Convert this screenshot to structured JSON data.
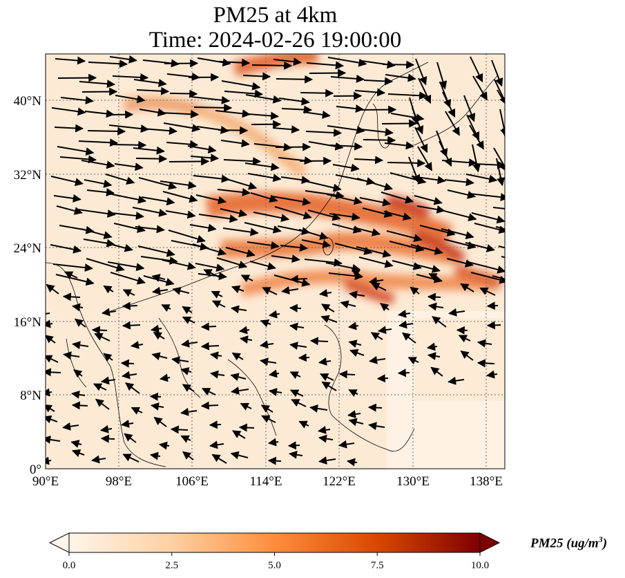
{
  "title_line1": "PM25 at 4km",
  "title_line2": "Time: 2024-02-26 19:00:00",
  "map": {
    "lon_range": [
      90,
      140
    ],
    "lat_range": [
      0,
      45
    ],
    "lon_ticks": [
      "90°E",
      "98°E",
      "106°E",
      "114°E",
      "122°E",
      "130°E",
      "138°E"
    ],
    "lat_ticks": [
      "0°",
      "8°N",
      "16°N",
      "24°N",
      "32°N",
      "40°N"
    ],
    "gridlines": "dotted"
  },
  "colorbar": {
    "ticks": [
      "0.0",
      "2.5",
      "5.0",
      "7.5",
      "10.0"
    ],
    "range": [
      0,
      10
    ],
    "extend": "both",
    "colormap": [
      "#fff5eb",
      "#fdd0a2",
      "#fd8d3c",
      "#d94801",
      "#7f0000"
    ],
    "label": "PM25 (ug/m3)",
    "label_main": "PM25 (ug/m",
    "label_sup": "3",
    "label_end": ")"
  },
  "colors": {
    "background_plume": "#fde6cc",
    "coastline": "#000000",
    "arrow": "#000000"
  }
}
